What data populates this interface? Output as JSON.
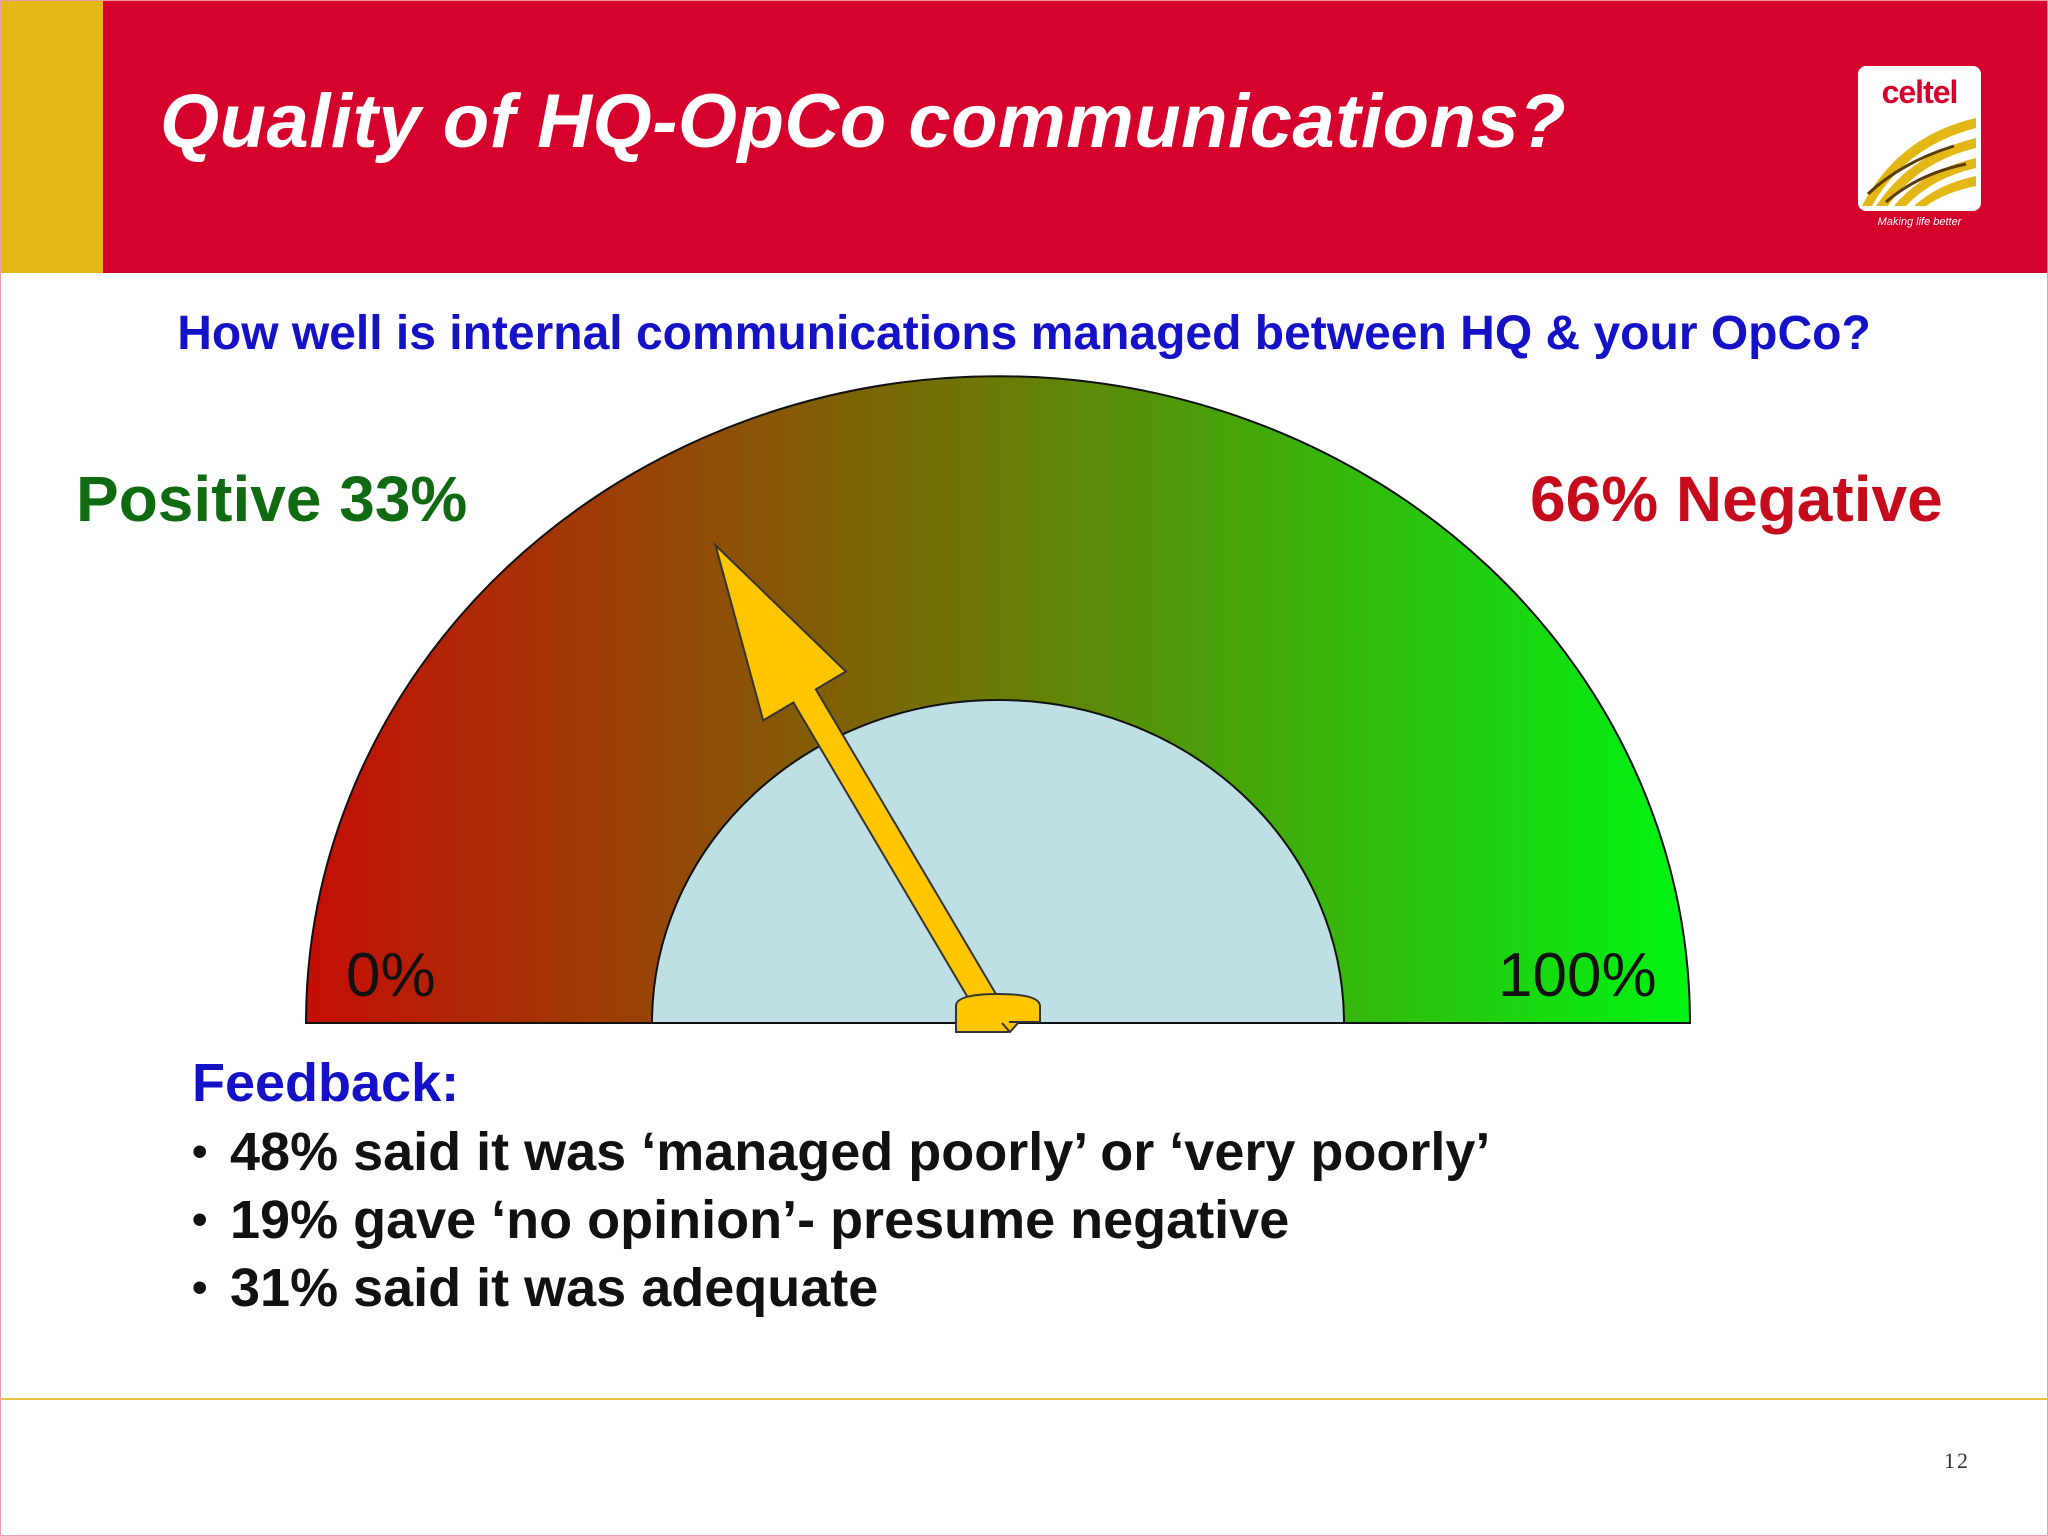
{
  "header": {
    "title": "Quality of HQ-OpCo communications?",
    "colors": {
      "bar": "#d5002b",
      "accent": "#e3b716"
    }
  },
  "logo": {
    "text": "celtel",
    "tagline": "Making life better"
  },
  "question": "How well is internal communications managed between HQ & your OpCo?",
  "chart_data": {
    "type": "gauge",
    "title": "How well is internal communications managed between HQ & your OpCo?",
    "range": [
      0,
      100
    ],
    "unit": "%",
    "min_label": "0%",
    "max_label": "100%",
    "value": 33,
    "left_label": "Positive 33%",
    "right_label": "66% Negative",
    "colors": {
      "low": "#c40e06",
      "mid": "#6b7a06",
      "high": "#00f413",
      "inner": "#bee0e5",
      "needle": "#ffc600"
    }
  },
  "feedback": {
    "heading": "Feedback:",
    "bullet": "•",
    "items": [
      "48% said it was ‘managed poorly’ or ‘very poorly’",
      "19% gave ‘no opinion’- presume negative",
      "31% said it was adequate"
    ]
  },
  "footer": {
    "page_number": "12"
  }
}
